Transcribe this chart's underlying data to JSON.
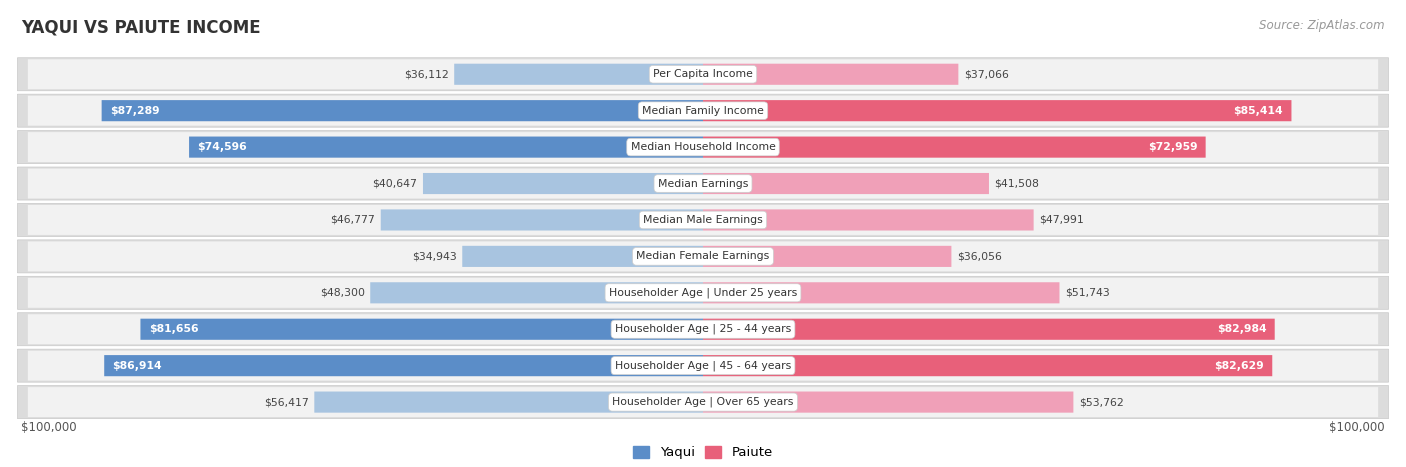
{
  "title": "YAQUI VS PAIUTE INCOME",
  "source": "Source: ZipAtlas.com",
  "categories": [
    "Per Capita Income",
    "Median Family Income",
    "Median Household Income",
    "Median Earnings",
    "Median Male Earnings",
    "Median Female Earnings",
    "Householder Age | Under 25 years",
    "Householder Age | 25 - 44 years",
    "Householder Age | 45 - 64 years",
    "Householder Age | Over 65 years"
  ],
  "yaqui_values": [
    36112,
    87289,
    74596,
    40647,
    46777,
    34943,
    48300,
    81656,
    86914,
    56417
  ],
  "paiute_values": [
    37066,
    85414,
    72959,
    41508,
    47991,
    36056,
    51743,
    82984,
    82629,
    53762
  ],
  "yaqui_labels": [
    "$36,112",
    "$87,289",
    "$74,596",
    "$40,647",
    "$46,777",
    "$34,943",
    "$48,300",
    "$81,656",
    "$86,914",
    "$56,417"
  ],
  "paiute_labels": [
    "$37,066",
    "$85,414",
    "$72,959",
    "$41,508",
    "$47,991",
    "$36,056",
    "$51,743",
    "$82,984",
    "$82,629",
    "$53,762"
  ],
  "yaqui_color_dark": "#5B8DC8",
  "yaqui_color_light": "#A8C4E0",
  "paiute_color_dark": "#E8607A",
  "paiute_color_light": "#F0A0B8",
  "max_value": 100000,
  "large_threshold": 60000,
  "row_outer_color": "#DCDCDC",
  "row_inner_color": "#F2F2F2",
  "legend_yaqui_label": "Yaqui",
  "legend_paiute_label": "Paiute",
  "xlabel_left": "$100,000",
  "xlabel_right": "$100,000",
  "bg_color": "#FFFFFF"
}
